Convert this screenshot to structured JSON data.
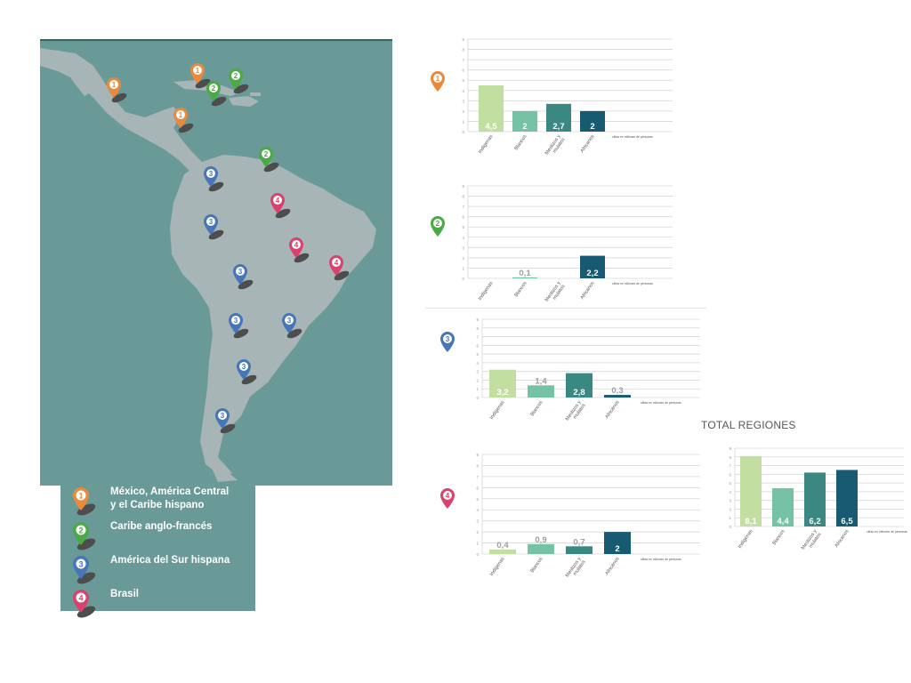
{
  "colors": {
    "map_bg": "#6a9a98",
    "land": "#a7b5b6",
    "shadow": "#4d4d4d",
    "region_1": "#e8893c",
    "region_2": "#4aaa43",
    "region_3": "#4676b8",
    "region_4": "#d9426c",
    "bar_indigenas": "#c2dea0",
    "bar_blancos": "#76c2a4",
    "bar_mestizos": "#3b8882",
    "bar_africanos": "#175a72"
  },
  "legend": {
    "items": [
      {
        "number": "1",
        "label": "México, América Central\ny el Caribe hispano",
        "color": "#e8893c"
      },
      {
        "number": "2",
        "label": "Caribe anglo-francés",
        "color": "#4aaa43"
      },
      {
        "number": "3",
        "label": "América del Sur hispana",
        "color": "#4676b8"
      },
      {
        "number": "4",
        "label": "Brasil",
        "color": "#d9426c"
      }
    ]
  },
  "map": {
    "pins": [
      {
        "region": "1",
        "label": "1"
      },
      {
        "region": "1",
        "label": "1"
      },
      {
        "region": "1",
        "label": "1"
      },
      {
        "region": "2",
        "label": "2"
      },
      {
        "region": "2",
        "label": "2"
      },
      {
        "region": "2",
        "label": "2"
      },
      {
        "region": "3",
        "label": "3"
      },
      {
        "region": "3",
        "label": "3"
      },
      {
        "region": "3",
        "label": "3"
      },
      {
        "region": "3",
        "label": "3"
      },
      {
        "region": "3",
        "label": "3"
      },
      {
        "region": "3",
        "label": "3"
      },
      {
        "region": "3",
        "label": "3"
      },
      {
        "region": "4",
        "label": "4"
      },
      {
        "region": "4",
        "label": "4"
      },
      {
        "region": "4",
        "label": "4"
      }
    ]
  },
  "total_title": "TOTAL REGIONES",
  "chart_data": [
    {
      "type": "bar",
      "region": "1",
      "pin_color": "#e8893c",
      "categories": [
        "Indígenas",
        "Blancos",
        "Mestizos y\nmulatos",
        "Africanos"
      ],
      "values": [
        4.5,
        2,
        2.7,
        2
      ],
      "value_labels": [
        "4,5",
        "2",
        "2,7",
        "2"
      ],
      "ylim": [
        0,
        9
      ],
      "yticks": [
        0,
        1,
        2,
        3,
        4,
        5,
        6,
        7,
        8,
        9
      ],
      "note": "cifras en millones de personas"
    },
    {
      "type": "bar",
      "region": "2",
      "pin_color": "#4aaa43",
      "categories": [
        "Indígenas",
        "Blancos",
        "Mestizos y\nmulatos",
        "Africanos"
      ],
      "values": [
        0,
        0.1,
        0,
        2.2
      ],
      "value_labels": [
        "",
        "0,1",
        "",
        "2,2"
      ],
      "ylim": [
        0,
        9
      ],
      "yticks": [
        0,
        1,
        2,
        3,
        4,
        5,
        6,
        7,
        8,
        9
      ],
      "note": "cifras en millones de personas"
    },
    {
      "type": "bar",
      "region": "3",
      "pin_color": "#4676b8",
      "categories": [
        "Indígenas",
        "Blancos",
        "Mestizos y\nmulatos",
        "Africanos"
      ],
      "values": [
        3.2,
        1.4,
        2.8,
        0.3
      ],
      "value_labels": [
        "3,2",
        "1,4",
        "2,8",
        "0,3"
      ],
      "ylim": [
        0,
        9
      ],
      "yticks": [
        0,
        1,
        2,
        3,
        4,
        5,
        6,
        7,
        8,
        9
      ],
      "note": "cifras en millones de personas"
    },
    {
      "type": "bar",
      "region": "4",
      "pin_color": "#d9426c",
      "categories": [
        "Indígenas",
        "Blancos",
        "Mestizos y\nmulatos",
        "Africanos"
      ],
      "values": [
        0.4,
        0.9,
        0.7,
        2
      ],
      "value_labels": [
        "0,4",
        "0,9",
        "0,7",
        "2"
      ],
      "ylim": [
        0,
        9
      ],
      "yticks": [
        0,
        1,
        2,
        3,
        4,
        5,
        6,
        7,
        8,
        9
      ],
      "note": "cifras en millones de personas"
    },
    {
      "type": "bar",
      "region": "total",
      "categories": [
        "Indígenas",
        "Blancos",
        "Mestizos y\nmulatos",
        "Africanos"
      ],
      "values": [
        8.1,
        4.4,
        6.2,
        6.5
      ],
      "value_labels": [
        "8,1",
        "4,4",
        "6,2",
        "6,5"
      ],
      "ylim": [
        0,
        9
      ],
      "yticks": [
        0,
        1,
        2,
        3,
        4,
        5,
        6,
        7,
        8,
        9
      ],
      "note": "cifras en millones de personas"
    }
  ]
}
